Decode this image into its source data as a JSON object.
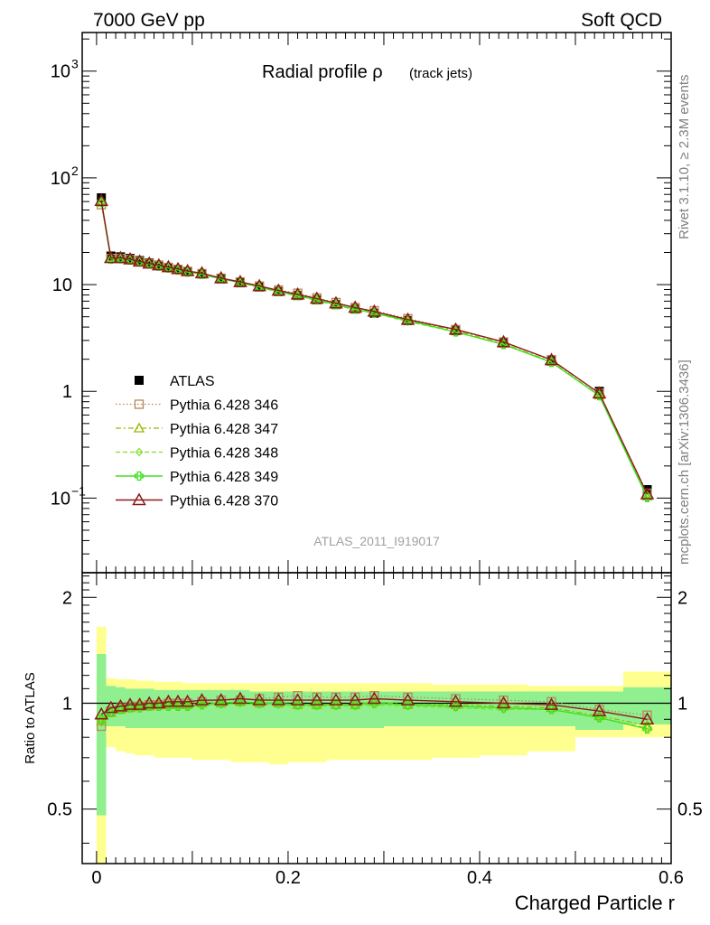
{
  "header": {
    "left": "7000 GeV pp",
    "right": "Soft QCD"
  },
  "side_text": {
    "top": "Rivet 3.1.10, ≥ 2.3M events",
    "bottom": "mcplots.cern.ch [arXiv:1306.3436]"
  },
  "title": {
    "main": "Radial profile ρ",
    "sub": "(track jets)"
  },
  "watermark": "ATLAS_2011_I919017",
  "ratio_ylabel": "Ratio to ATLAS",
  "colors": {
    "data": "#000000",
    "p346": "#b8865a",
    "p347": "#9ab800",
    "p348": "#7fe020",
    "p349": "#40e020",
    "p370": "#8b1a1a",
    "band_inner": "#90f090",
    "band_outer": "#ffff90"
  },
  "chart_data": [
    {
      "type": "scatter",
      "title": "Radial profile ρ (track jets)",
      "xlabel": "Charged Particle r",
      "ylabel": "",
      "xlim": [
        -0.015,
        0.6
      ],
      "ylim": [
        0.02,
        2300
      ],
      "yscale": "log",
      "xticks": [
        "0",
        "0.2",
        "0.4",
        "0.6"
      ],
      "yticks": [
        "10^-1",
        "1",
        "10",
        "10^2",
        "10^3"
      ],
      "legend_position": "left-middle",
      "x": [
        0.005,
        0.015,
        0.025,
        0.035,
        0.045,
        0.055,
        0.065,
        0.075,
        0.085,
        0.095,
        0.11,
        0.13,
        0.15,
        0.17,
        0.19,
        0.21,
        0.23,
        0.25,
        0.27,
        0.29,
        0.325,
        0.375,
        0.425,
        0.475,
        0.525,
        0.575
      ],
      "series": [
        {
          "name": "ATLAS",
          "values": [
            65,
            18.5,
            18.2,
            17.6,
            16.8,
            16.0,
            15.2,
            14.5,
            13.9,
            13.3,
            12.6,
            11.3,
            10.4,
            9.5,
            8.6,
            7.9,
            7.2,
            6.5,
            5.9,
            5.4,
            4.6,
            3.7,
            2.85,
            1.95,
            1.0,
            0.12
          ]
        },
        {
          "name": "Pythia 6.428 346",
          "values": [
            56,
            17.6,
            17.6,
            17.2,
            16.5,
            15.8,
            15.1,
            14.5,
            13.9,
            13.3,
            12.7,
            11.5,
            10.6,
            9.7,
            8.9,
            8.3,
            7.5,
            6.8,
            6.1,
            5.7,
            4.8,
            3.8,
            2.9,
            1.98,
            0.96,
            0.111
          ]
        },
        {
          "name": "Pythia 6.428 347",
          "values": [
            59,
            17.4,
            17.5,
            17.1,
            16.4,
            15.7,
            15.0,
            14.4,
            13.8,
            13.2,
            12.6,
            11.3,
            10.5,
            9.5,
            8.6,
            7.9,
            7.2,
            6.5,
            5.9,
            5.5,
            4.6,
            3.7,
            2.8,
            1.9,
            0.92,
            0.104
          ]
        },
        {
          "name": "Pythia 6.428 348",
          "values": [
            59,
            17.3,
            17.4,
            17.0,
            16.3,
            15.6,
            14.9,
            14.3,
            13.7,
            13.1,
            12.5,
            11.3,
            10.4,
            9.4,
            8.5,
            7.8,
            7.1,
            6.4,
            5.8,
            5.4,
            4.5,
            3.6,
            2.75,
            1.87,
            0.91,
            0.101
          ]
        },
        {
          "name": "Pythia 6.428 349",
          "values": [
            59,
            17.3,
            17.4,
            17.0,
            16.3,
            15.6,
            14.9,
            14.3,
            13.7,
            13.1,
            12.5,
            11.3,
            10.5,
            9.5,
            8.6,
            7.9,
            7.2,
            6.5,
            5.9,
            5.4,
            4.6,
            3.6,
            2.75,
            1.87,
            0.91,
            0.101
          ]
        },
        {
          "name": "Pythia 6.428 370",
          "values": [
            61,
            17.8,
            17.8,
            17.3,
            16.5,
            15.8,
            15.2,
            14.6,
            14.0,
            13.4,
            12.8,
            11.5,
            10.6,
            9.7,
            8.8,
            8.1,
            7.4,
            6.7,
            6.1,
            5.6,
            4.7,
            3.8,
            2.9,
            1.97,
            0.96,
            0.109
          ]
        }
      ]
    },
    {
      "type": "line",
      "title": "",
      "xlabel": "Charged Particle r",
      "ylabel": "Ratio to ATLAS",
      "xlim": [
        -0.015,
        0.6
      ],
      "ylim": [
        0.35,
        2.35
      ],
      "yscale": "log",
      "xticks": [
        "0",
        "0.2",
        "0.4",
        "0.6"
      ],
      "yticks": [
        "0.5",
        "1",
        "2"
      ],
      "bin_edges": [
        0,
        0.01,
        0.02,
        0.03,
        0.04,
        0.05,
        0.06,
        0.07,
        0.08,
        0.09,
        0.1,
        0.12,
        0.14,
        0.16,
        0.18,
        0.2,
        0.22,
        0.24,
        0.26,
        0.28,
        0.3,
        0.35,
        0.4,
        0.45,
        0.5,
        0.55,
        0.6
      ],
      "band_inner_low": [
        0.48,
        0.86,
        0.86,
        0.85,
        0.85,
        0.85,
        0.85,
        0.85,
        0.85,
        0.85,
        0.85,
        0.85,
        0.85,
        0.85,
        0.85,
        0.85,
        0.85,
        0.85,
        0.85,
        0.85,
        0.86,
        0.86,
        0.86,
        0.86,
        0.84,
        0.87
      ],
      "band_inner_high": [
        1.38,
        1.12,
        1.11,
        1.1,
        1.1,
        1.1,
        1.09,
        1.09,
        1.09,
        1.09,
        1.09,
        1.09,
        1.09,
        1.08,
        1.08,
        1.08,
        1.08,
        1.08,
        1.08,
        1.08,
        1.08,
        1.08,
        1.08,
        1.08,
        1.08,
        1.11
      ],
      "band_outer_low": [
        0.35,
        0.75,
        0.73,
        0.72,
        0.71,
        0.71,
        0.7,
        0.7,
        0.7,
        0.7,
        0.69,
        0.69,
        0.68,
        0.68,
        0.67,
        0.68,
        0.68,
        0.69,
        0.69,
        0.69,
        0.69,
        0.7,
        0.71,
        0.73,
        0.8,
        0.8
      ],
      "band_outer_high": [
        1.65,
        1.18,
        1.17,
        1.17,
        1.16,
        1.16,
        1.15,
        1.15,
        1.15,
        1.14,
        1.14,
        1.14,
        1.14,
        1.14,
        1.14,
        1.14,
        1.14,
        1.14,
        1.14,
        1.14,
        1.14,
        1.13,
        1.13,
        1.12,
        1.12,
        1.23
      ],
      "x": [
        0.005,
        0.015,
        0.025,
        0.035,
        0.045,
        0.055,
        0.065,
        0.075,
        0.085,
        0.095,
        0.11,
        0.13,
        0.15,
        0.17,
        0.19,
        0.21,
        0.23,
        0.25,
        0.27,
        0.29,
        0.325,
        0.375,
        0.425,
        0.475,
        0.525,
        0.575
      ],
      "series": [
        {
          "name": "Pythia 6.428 346",
          "values": [
            0.86,
            0.95,
            0.97,
            0.98,
            0.98,
            0.99,
            0.99,
            1.0,
            1.0,
            1.0,
            1.01,
            1.02,
            1.02,
            1.03,
            1.04,
            1.05,
            1.04,
            1.04,
            1.04,
            1.05,
            1.04,
            1.03,
            1.02,
            1.01,
            0.96,
            0.925
          ]
        },
        {
          "name": "Pythia 6.428 347",
          "values": [
            0.89,
            0.94,
            0.96,
            0.97,
            0.98,
            0.98,
            0.99,
            0.99,
            0.99,
            0.99,
            1.0,
            1.0,
            1.01,
            1.0,
            1.0,
            0.99,
            0.99,
            0.99,
            0.99,
            1.01,
            0.99,
            0.99,
            0.98,
            0.97,
            0.92,
            0.865
          ]
        },
        {
          "name": "Pythia 6.428 348",
          "values": [
            0.9,
            0.94,
            0.96,
            0.97,
            0.97,
            0.98,
            0.98,
            0.98,
            0.98,
            0.98,
            0.99,
            0.99,
            1.0,
            0.99,
            0.99,
            0.98,
            0.98,
            0.98,
            0.98,
            0.99,
            0.98,
            0.97,
            0.96,
            0.96,
            0.91,
            0.85
          ]
        },
        {
          "name": "Pythia 6.428 349",
          "values": [
            0.9,
            0.94,
            0.96,
            0.97,
            0.97,
            0.98,
            0.98,
            0.98,
            0.98,
            0.98,
            0.99,
            1.0,
            1.01,
            1.0,
            1.0,
            0.99,
            0.99,
            0.99,
            0.99,
            1.0,
            0.99,
            0.98,
            0.97,
            0.96,
            0.91,
            0.845
          ]
        },
        {
          "name": "Pythia 6.428 370",
          "values": [
            0.93,
            0.97,
            0.98,
            0.99,
            0.99,
            1.0,
            1.0,
            1.01,
            1.01,
            1.01,
            1.02,
            1.02,
            1.03,
            1.02,
            1.02,
            1.02,
            1.02,
            1.02,
            1.02,
            1.03,
            1.02,
            1.01,
            1.0,
            0.99,
            0.95,
            0.9
          ]
        }
      ]
    }
  ]
}
